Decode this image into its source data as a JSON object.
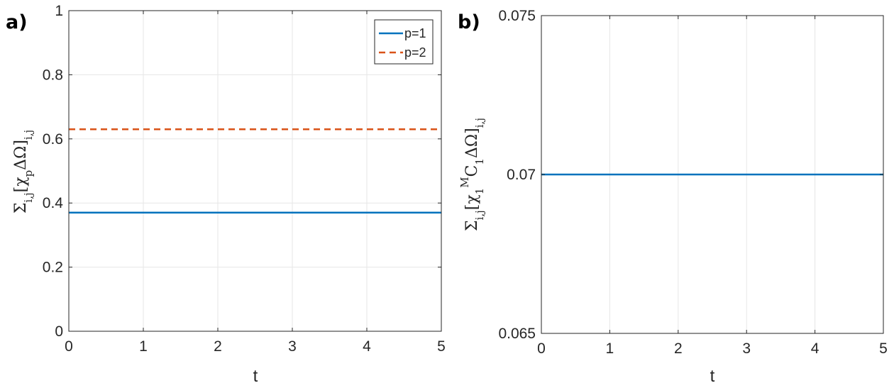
{
  "colors": {
    "series_p1": "#0072BD",
    "series_p2": "#D95319",
    "grid": "#e6e6e6",
    "axis": "#262626"
  },
  "chart_data": [
    {
      "type": "line",
      "panel_label": "a)",
      "xlabel": "t",
      "ylabel": "Σi,j[χpΔΩ]i,j",
      "ylabel_parts": {
        "base1": "Σ",
        "sub1": "i,j",
        "base2": "[χ",
        "sub2": "p",
        "base3": "ΔΩ]",
        "sub3": "i,j"
      },
      "xlim": [
        0,
        5
      ],
      "ylim": [
        0,
        1
      ],
      "xticks": [
        0,
        1,
        2,
        3,
        4,
        5
      ],
      "xtick_labels": [
        "0",
        "1",
        "2",
        "3",
        "4",
        "5"
      ],
      "yticks": [
        0,
        0.2,
        0.4,
        0.6,
        0.8,
        1
      ],
      "ytick_labels": [
        "0",
        "0.2",
        "0.4",
        "0.6",
        "0.8",
        "1"
      ],
      "grid": true,
      "legend_position": "top-right",
      "series": [
        {
          "name": "p=1",
          "style": "solid",
          "color": "#0072BD",
          "x": [
            0,
            5
          ],
          "y": [
            0.37,
            0.37
          ]
        },
        {
          "name": "p=2",
          "style": "dashed",
          "color": "#D95319",
          "x": [
            0,
            5
          ],
          "y": [
            0.63,
            0.63
          ]
        }
      ]
    },
    {
      "type": "line",
      "panel_label": "b)",
      "xlabel": "t",
      "ylabel": "Σi,j[χ1MC1ΔΩ]i,j",
      "ylabel_parts": {
        "base1": "Σ",
        "sub1": "i,j",
        "base2": "[χ",
        "sub2": "1",
        "sup2": "M",
        "base3": "C",
        "sub3": "1",
        "base4": "ΔΩ]",
        "sub4": "i,j"
      },
      "xlim": [
        0,
        5
      ],
      "ylim": [
        0.065,
        0.075
      ],
      "xticks": [
        0,
        1,
        2,
        3,
        4,
        5
      ],
      "xtick_labels": [
        "0",
        "1",
        "2",
        "3",
        "4",
        "5"
      ],
      "yticks": [
        0.065,
        0.07,
        0.075
      ],
      "ytick_labels": [
        "0.065",
        "0.07",
        "0.075"
      ],
      "grid": true,
      "series": [
        {
          "style": "solid",
          "color": "#0072BD",
          "x": [
            0,
            5
          ],
          "y": [
            0.07,
            0.07
          ]
        }
      ]
    }
  ]
}
